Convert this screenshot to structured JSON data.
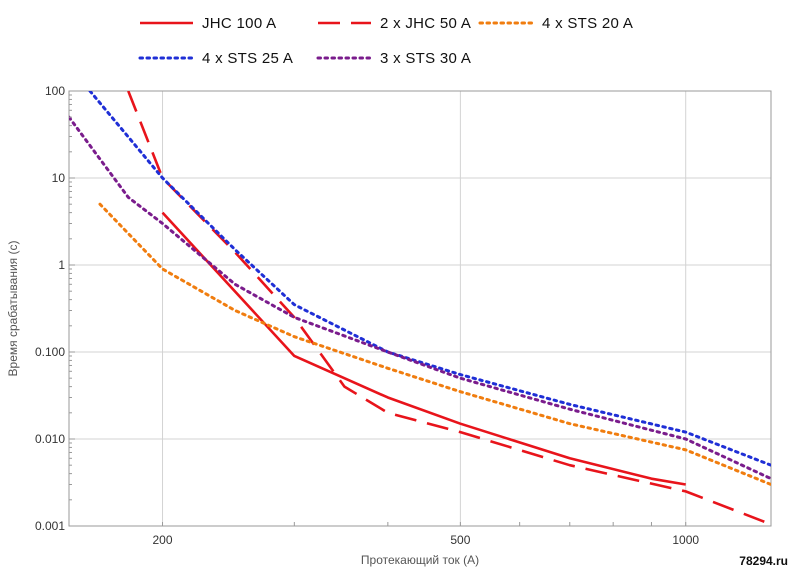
{
  "chart_data": {
    "type": "line",
    "xlabel": "Протекающий ток (A)",
    "ylabel": "Время срабатывания (с)",
    "x_scale": "log",
    "y_scale": "log",
    "xlim": [
      150,
      1300
    ],
    "ylim": [
      0.001,
      100
    ],
    "grid": true,
    "legend_position": "top",
    "x_ticks": [
      {
        "value": 200,
        "label": "200"
      },
      {
        "value": 500,
        "label": "500"
      },
      {
        "value": 1000,
        "label": "1000"
      }
    ],
    "y_ticks": [
      {
        "value": 100,
        "label": "100"
      },
      {
        "value": 10,
        "label": "10"
      },
      {
        "value": 1,
        "label": "1"
      },
      {
        "value": 0.1,
        "label": "0.100"
      },
      {
        "value": 0.01,
        "label": "0.010"
      },
      {
        "value": 0.001,
        "label": "0.001"
      }
    ],
    "series": [
      {
        "name": "JHC 100 A",
        "color": "#e8141b",
        "style": "solid",
        "points": [
          [
            200,
            4
          ],
          [
            300,
            0.09
          ],
          [
            400,
            0.03
          ],
          [
            500,
            0.015
          ],
          [
            700,
            0.006
          ],
          [
            900,
            0.0035
          ],
          [
            1000,
            0.003
          ]
        ]
      },
      {
        "name": "2 x JHC 50 A",
        "color": "#e8141b",
        "style": "dashed",
        "points": [
          [
            180,
            100
          ],
          [
            200,
            10
          ],
          [
            250,
            1.4
          ],
          [
            300,
            0.25
          ],
          [
            350,
            0.04
          ],
          [
            400,
            0.02
          ],
          [
            500,
            0.012
          ],
          [
            700,
            0.005
          ],
          [
            1000,
            0.0025
          ],
          [
            1280,
            0.0011
          ]
        ]
      },
      {
        "name": "4 x STS 20 A",
        "color": "#f07d0f",
        "style": "dotted",
        "points": [
          [
            165,
            5
          ],
          [
            200,
            0.9
          ],
          [
            250,
            0.3
          ],
          [
            300,
            0.15
          ],
          [
            400,
            0.065
          ],
          [
            500,
            0.035
          ],
          [
            700,
            0.015
          ],
          [
            1000,
            0.0075
          ],
          [
            1300,
            0.003
          ]
        ]
      },
      {
        "name": "4 x STS 25 A",
        "color": "#1f2fd6",
        "style": "dotted",
        "points": [
          [
            160,
            100
          ],
          [
            200,
            10
          ],
          [
            250,
            1.5
          ],
          [
            300,
            0.35
          ],
          [
            400,
            0.1
          ],
          [
            500,
            0.055
          ],
          [
            700,
            0.025
          ],
          [
            1000,
            0.012
          ],
          [
            1300,
            0.005
          ]
        ]
      },
      {
        "name": "3 x STS 30 A",
        "color": "#7a1c8c",
        "style": "dotted",
        "points": [
          [
            150,
            50
          ],
          [
            180,
            6
          ],
          [
            200,
            3
          ],
          [
            250,
            0.6
          ],
          [
            300,
            0.25
          ],
          [
            400,
            0.1
          ],
          [
            500,
            0.05
          ],
          [
            700,
            0.022
          ],
          [
            1000,
            0.01
          ],
          [
            1300,
            0.0035
          ]
        ]
      }
    ]
  },
  "watermark": "78294.ru"
}
